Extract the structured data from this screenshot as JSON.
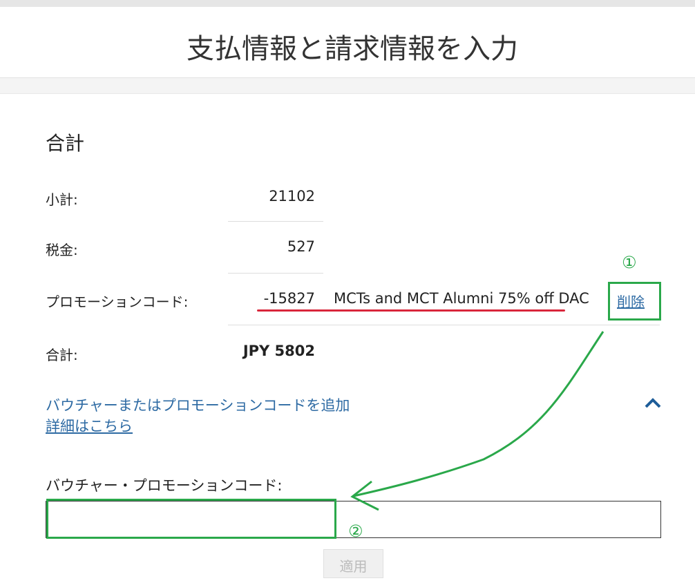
{
  "header": {
    "title": "支払情報と請求情報を入力"
  },
  "summary": {
    "heading": "合計",
    "rows": [
      {
        "label": "小計:",
        "value": "21102"
      },
      {
        "label": "税金:",
        "value": "527"
      },
      {
        "label": "プロモーションコード:",
        "value": "-15827",
        "description": "MCTs and MCT Alumni 75% off DAC",
        "action": "削除"
      },
      {
        "label": "合計:",
        "value": "JPY 5802"
      }
    ]
  },
  "voucher": {
    "toggle": "バウチャーまたはプロモーションコードを追加",
    "details_link": "詳細はこちら",
    "input_label": "バウチャー・プロモーションコード:",
    "apply_button": "適用"
  },
  "annotations": [
    "①",
    "②"
  ]
}
